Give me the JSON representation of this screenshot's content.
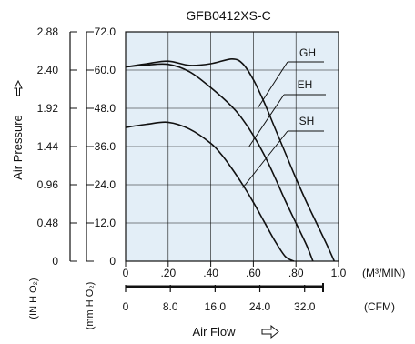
{
  "chart_data": {
    "type": "line",
    "title": "GFB0412XS-C",
    "xlabel": "Air Flow",
    "ylabel": "Air Pressure",
    "x_unit": "(M³/MIN)",
    "x2_unit": "(CFM)",
    "y_unit_inh2o": "(IN H O₂)",
    "y_unit_mmh2o": "(mm H O₂)",
    "xlim": [
      0,
      1.0
    ],
    "ylim": [
      0,
      72.0
    ],
    "x_ticks": [
      {
        "value": 0,
        "label": "0"
      },
      {
        "value": 0.2,
        "label": ".20"
      },
      {
        "value": 0.4,
        "label": ".40"
      },
      {
        "value": 0.6,
        "label": ".60"
      },
      {
        "value": 0.8,
        "label": ".80"
      },
      {
        "value": 1.0,
        "label": "1.0"
      }
    ],
    "x2_ticks": [
      {
        "value": 0,
        "label": "0"
      },
      {
        "value": 8.0,
        "label": "8.0"
      },
      {
        "value": 16.0,
        "label": "16.0"
      },
      {
        "value": 24.0,
        "label": "24.0"
      },
      {
        "value": 32.0,
        "label": "32.0"
      }
    ],
    "x2_max": 35.3,
    "y_ticks_mmh2o": [
      {
        "value": 0,
        "label": "0"
      },
      {
        "value": 12.0,
        "label": "12.0"
      },
      {
        "value": 24.0,
        "label": "24.0"
      },
      {
        "value": 36.0,
        "label": "36.0"
      },
      {
        "value": 48.0,
        "label": "48.0"
      },
      {
        "value": 60.0,
        "label": "60.0"
      },
      {
        "value": 72.0,
        "label": "72.0"
      }
    ],
    "y_ticks_inh2o": [
      {
        "value": 0,
        "label": "0"
      },
      {
        "value": 12.0,
        "label": "0.48"
      },
      {
        "value": 24.0,
        "label": "0.96"
      },
      {
        "value": 36.0,
        "label": "1.44"
      },
      {
        "value": 48.0,
        "label": "1.92"
      },
      {
        "value": 60.0,
        "label": "2.40"
      },
      {
        "value": 72.0,
        "label": "2.88"
      }
    ],
    "grid": true,
    "series": [
      {
        "name": "GH",
        "x": [
          0,
          0.1,
          0.2,
          0.3,
          0.4,
          0.5,
          0.55,
          0.6,
          0.65,
          0.7,
          0.75,
          0.8,
          0.85,
          0.9,
          0.95,
          0.98
        ],
        "y": [
          61.0,
          62.0,
          62.8,
          61.5,
          62.0,
          63.5,
          62.0,
          57.0,
          50.0,
          42.0,
          34.0,
          26.0,
          18.5,
          11.5,
          4.5,
          0
        ]
      },
      {
        "name": "EH",
        "x": [
          0,
          0.1,
          0.2,
          0.3,
          0.4,
          0.5,
          0.55,
          0.6,
          0.65,
          0.7,
          0.75,
          0.8,
          0.85,
          0.88
        ],
        "y": [
          61.0,
          61.6,
          61.8,
          59.5,
          54.5,
          48.5,
          44.5,
          39.5,
          33.5,
          26.5,
          19.0,
          12.0,
          5.0,
          0
        ]
      },
      {
        "name": "SH",
        "x": [
          0,
          0.1,
          0.2,
          0.3,
          0.4,
          0.45,
          0.5,
          0.55,
          0.6,
          0.65,
          0.7,
          0.75,
          0.79
        ],
        "y": [
          42.0,
          43.0,
          43.6,
          41.5,
          37.0,
          33.5,
          29.0,
          24.0,
          18.5,
          12.5,
          6.5,
          1.5,
          0
        ]
      }
    ]
  }
}
